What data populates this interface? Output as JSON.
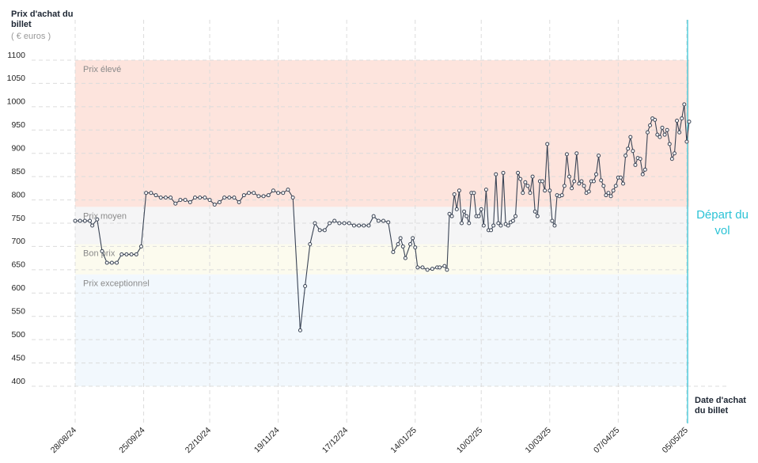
{
  "chart_data": {
    "type": "line",
    "y_title": "Prix d'achat du billet",
    "y_unit": "( € euros )",
    "x_title": "Date d'achat du billet",
    "departure_label": "Départ du vol",
    "line_color": "#3a4455",
    "departure_color": "#2cc3d6",
    "zones": [
      {
        "label": "Prix élevé",
        "from": 785,
        "to": 1100,
        "color": "#fde4dd"
      },
      {
        "label": "Prix moyen",
        "from": 705,
        "to": 785,
        "color": "#f5f5f6"
      },
      {
        "label": "Bon prix",
        "from": 640,
        "to": 705,
        "color": "#fcfbee"
      },
      {
        "label": "Prix exceptionnel",
        "from": 400,
        "to": 640,
        "color": "#f2f8fd"
      }
    ],
    "xlim": [
      "2024-08-28",
      "2025-05-06"
    ],
    "ylim": [
      400,
      1100
    ],
    "yticks": [
      400,
      450,
      500,
      550,
      600,
      650,
      700,
      750,
      800,
      850,
      900,
      950,
      1000,
      1050,
      1100
    ],
    "xticks": [
      {
        "value": "2024-08-28",
        "label": "28/08/24"
      },
      {
        "value": "2024-09-25",
        "label": "25/09/24"
      },
      {
        "value": "2024-10-22",
        "label": "22/10/24"
      },
      {
        "value": "2024-11-19",
        "label": "19/11/24"
      },
      {
        "value": "2024-12-17",
        "label": "17/12/24"
      },
      {
        "value": "2025-01-14",
        "label": "14/01/25"
      },
      {
        "value": "2025-02-10",
        "label": "10/02/25"
      },
      {
        "value": "2025-03-10",
        "label": "10/03/25"
      },
      {
        "value": "2025-04-07",
        "label": "07/04/25"
      },
      {
        "value": "2025-05-05",
        "label": "05/05/25"
      }
    ],
    "x": [
      "2024-08-28",
      "2024-08-30",
      "2024-09-01",
      "2024-09-03",
      "2024-09-04",
      "2024-09-06",
      "2024-09-08",
      "2024-09-10",
      "2024-09-12",
      "2024-09-14",
      "2024-09-16",
      "2024-09-18",
      "2024-09-20",
      "2024-09-22",
      "2024-09-24",
      "2024-09-26",
      "2024-09-28",
      "2024-09-30",
      "2024-10-02",
      "2024-10-04",
      "2024-10-06",
      "2024-10-08",
      "2024-10-10",
      "2024-10-12",
      "2024-10-14",
      "2024-10-16",
      "2024-10-18",
      "2024-10-20",
      "2024-10-22",
      "2024-10-24",
      "2024-10-26",
      "2024-10-28",
      "2024-10-30",
      "2024-11-01",
      "2024-11-03",
      "2024-11-05",
      "2024-11-07",
      "2024-11-09",
      "2024-11-11",
      "2024-11-13",
      "2024-11-15",
      "2024-11-17",
      "2024-11-19",
      "2024-11-21",
      "2024-11-23",
      "2024-11-25",
      "2024-11-28",
      "2024-11-30",
      "2024-12-02",
      "2024-12-04",
      "2024-12-06",
      "2024-12-08",
      "2024-12-10",
      "2024-12-12",
      "2024-12-14",
      "2024-12-16",
      "2024-12-18",
      "2024-12-20",
      "2024-12-22",
      "2024-12-24",
      "2024-12-26",
      "2024-12-28",
      "2024-12-30",
      "2025-01-01",
      "2025-01-03",
      "2025-01-05",
      "2025-01-07",
      "2025-01-08",
      "2025-01-09",
      "2025-01-10",
      "2025-01-12",
      "2025-01-13",
      "2025-01-14",
      "2025-01-15",
      "2025-01-17",
      "2025-01-19",
      "2025-01-21",
      "2025-01-23",
      "2025-01-24",
      "2025-01-26",
      "2025-01-27",
      "2025-01-28",
      "2025-01-29",
      "2025-01-30",
      "2025-01-31",
      "2025-02-01",
      "2025-02-02",
      "2025-02-03",
      "2025-02-04",
      "2025-02-05",
      "2025-02-06",
      "2025-02-07",
      "2025-02-08",
      "2025-02-09",
      "2025-02-10",
      "2025-02-11",
      "2025-02-12",
      "2025-02-13",
      "2025-02-14",
      "2025-02-15",
      "2025-02-16",
      "2025-02-17",
      "2025-02-18",
      "2025-02-19",
      "2025-02-20",
      "2025-02-21",
      "2025-02-22",
      "2025-02-23",
      "2025-02-24",
      "2025-02-25",
      "2025-02-26",
      "2025-02-27",
      "2025-02-28",
      "2025-03-01",
      "2025-03-02",
      "2025-03-03",
      "2025-03-04",
      "2025-03-05",
      "2025-03-06",
      "2025-03-07",
      "2025-03-08",
      "2025-03-09",
      "2025-03-10",
      "2025-03-11",
      "2025-03-12",
      "2025-03-13",
      "2025-03-14",
      "2025-03-15",
      "2025-03-16",
      "2025-03-17",
      "2025-03-18",
      "2025-03-19",
      "2025-03-20",
      "2025-03-21",
      "2025-03-22",
      "2025-03-23",
      "2025-03-24",
      "2025-03-25",
      "2025-03-26",
      "2025-03-27",
      "2025-03-28",
      "2025-03-29",
      "2025-03-30",
      "2025-03-31",
      "2025-04-01",
      "2025-04-02",
      "2025-04-03",
      "2025-04-04",
      "2025-04-05",
      "2025-04-06",
      "2025-04-07",
      "2025-04-08",
      "2025-04-09",
      "2025-04-10",
      "2025-04-11",
      "2025-04-12",
      "2025-04-13",
      "2025-04-14",
      "2025-04-15",
      "2025-04-16",
      "2025-04-17",
      "2025-04-18",
      "2025-04-19",
      "2025-04-20",
      "2025-04-21",
      "2025-04-22",
      "2025-04-23",
      "2025-04-24",
      "2025-04-25",
      "2025-04-26",
      "2025-04-27",
      "2025-04-28",
      "2025-04-29",
      "2025-04-30",
      "2025-05-01",
      "2025-05-02",
      "2025-05-03",
      "2025-05-04",
      "2025-05-05",
      "2025-05-06"
    ],
    "values": [
      755,
      755,
      755,
      755,
      745,
      758,
      690,
      665,
      665,
      665,
      683,
      683,
      683,
      683,
      700,
      815,
      815,
      810,
      805,
      805,
      805,
      792,
      800,
      800,
      795,
      805,
      805,
      805,
      800,
      790,
      795,
      805,
      805,
      805,
      795,
      810,
      815,
      815,
      808,
      808,
      810,
      820,
      815,
      815,
      822,
      805,
      520,
      615,
      705,
      750,
      735,
      735,
      750,
      755,
      750,
      750,
      750,
      745,
      745,
      745,
      745,
      765,
      755,
      755,
      752,
      688,
      705,
      718,
      700,
      675,
      705,
      718,
      698,
      655,
      655,
      650,
      652,
      655,
      655,
      658,
      650,
      770,
      765,
      812,
      780,
      820,
      750,
      775,
      765,
      750,
      815,
      815,
      765,
      765,
      780,
      745,
      822,
      735,
      735,
      745,
      855,
      750,
      745,
      858,
      748,
      745,
      752,
      755,
      765,
      858,
      845,
      815,
      838,
      830,
      815,
      850,
      775,
      765,
      840,
      840,
      820,
      920,
      820,
      755,
      745,
      810,
      808,
      810,
      830,
      898,
      850,
      825,
      840,
      900,
      835,
      840,
      830,
      815,
      818,
      840,
      840,
      855,
      895,
      842,
      830,
      810,
      815,
      808,
      820,
      830,
      848,
      848,
      835,
      895,
      910,
      935,
      905,
      875,
      890,
      888,
      855,
      865,
      945,
      960,
      975,
      972,
      940,
      935,
      955,
      940,
      950,
      920,
      888,
      900,
      970,
      945,
      975,
      1005,
      925,
      968
    ]
  }
}
